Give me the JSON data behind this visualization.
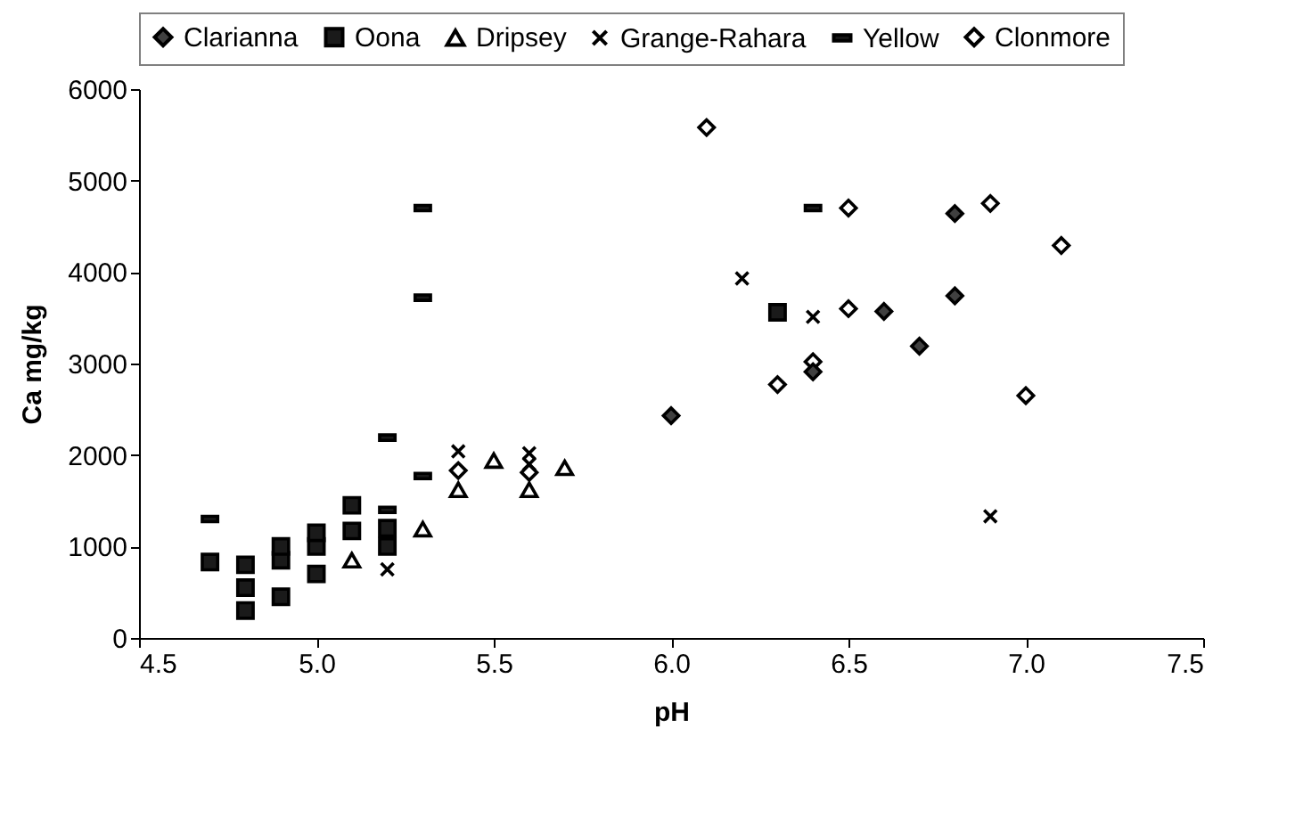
{
  "chart_data": {
    "type": "scatter",
    "xlabel": "pH",
    "ylabel": "Ca mg/kg",
    "xlim": [
      4.5,
      7.5
    ],
    "xticks": [
      4.5,
      {
        "value": 5,
        "label": "5.0"
      },
      5.5,
      {
        "value": 6,
        "label": "6.0"
      },
      6.5,
      {
        "value": 7,
        "label": "7.0"
      },
      7.5
    ],
    "ylim": [
      0,
      6000
    ],
    "yticks": [
      0,
      1000,
      2000,
      3000,
      4000,
      5000,
      6000
    ],
    "grid": false,
    "legend": "top",
    "series": [
      {
        "name": "Clarianna",
        "color": "#404040",
        "marker": "diamond",
        "x": [
          6.0,
          6.4,
          6.6,
          6.7,
          6.8,
          6.8
        ],
        "values": [
          2430,
          2910,
          3570,
          3190,
          3740,
          4640
        ]
      },
      {
        "name": "Oona",
        "color": "#1a1a1a",
        "marker": "square",
        "x": [
          4.7,
          4.8,
          4.8,
          4.8,
          4.9,
          4.9,
          4.9,
          5.0,
          5.0,
          5.0,
          5.1,
          5.1,
          5.2,
          5.2,
          6.3
        ],
        "values": [
          830,
          800,
          550,
          300,
          1000,
          850,
          450,
          1150,
          1000,
          700,
          1450,
          1170,
          1200,
          1000,
          3560
        ]
      },
      {
        "name": "Dripsey",
        "color": "#ffffff",
        "marker": "triangle",
        "x": [
          5.1,
          5.3,
          5.4,
          5.5,
          5.6,
          5.7
        ],
        "values": [
          850,
          1190,
          1620,
          1940,
          1620,
          1860
        ]
      },
      {
        "name": "Grange-Rahara",
        "color": "#000000",
        "marker": "cross",
        "x": [
          5.2,
          5.4,
          5.6,
          5.6,
          6.2,
          6.4,
          6.9
        ],
        "values": [
          750,
          2040,
          2020,
          1900,
          3930,
          3510,
          1330
        ]
      },
      {
        "name": "Yellow",
        "color": "#1a1a1a",
        "x": [
          4.7,
          5.2,
          5.2,
          5.3,
          5.3,
          5.3,
          6.4
        ],
        "values": [
          1300,
          2190,
          1400,
          1770,
          3720,
          4700,
          4700
        ]
      },
      {
        "name": "Clonmore",
        "color": "#ffffff",
        "marker": "diamond",
        "x": [
          5.4,
          5.6,
          6.1,
          6.3,
          6.4,
          6.5,
          6.5,
          6.9,
          7.0,
          7.1
        ],
        "values": [
          1830,
          1810,
          5580,
          2770,
          3020,
          4700,
          3600,
          4750,
          2650,
          4290
        ]
      }
    ]
  }
}
